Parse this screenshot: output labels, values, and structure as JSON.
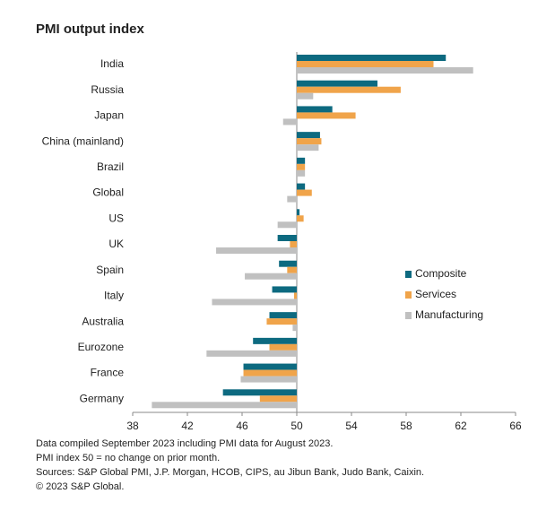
{
  "chart_data": {
    "type": "bar",
    "orientation": "horizontal",
    "title": "PMI output index",
    "categories": [
      "India",
      "Russia",
      "Japan",
      "China (mainland)",
      "Brazil",
      "Global",
      "US",
      "UK",
      "Spain",
      "Italy",
      "Australia",
      "Eurozone",
      "France",
      "Germany"
    ],
    "series": [
      {
        "name": "Composite",
        "color": "#0d6a80",
        "values": [
          60.9,
          55.9,
          52.6,
          51.7,
          50.6,
          50.6,
          50.2,
          48.6,
          48.7,
          48.2,
          48.0,
          46.8,
          46.1,
          44.6
        ]
      },
      {
        "name": "Services",
        "color": "#f0a44a",
        "values": [
          60.0,
          57.6,
          54.3,
          51.8,
          50.6,
          51.1,
          50.5,
          49.5,
          49.3,
          49.8,
          47.8,
          48.0,
          46.1,
          47.3
        ]
      },
      {
        "name": "Manufacturing",
        "color": "#c0c0c0",
        "values": [
          62.9,
          51.2,
          49.0,
          51.6,
          50.6,
          49.3,
          48.6,
          44.1,
          46.2,
          43.8,
          49.7,
          43.4,
          45.9,
          39.4
        ]
      }
    ],
    "baseline": 50,
    "xlim": [
      38,
      66
    ],
    "xticks": [
      38,
      42,
      46,
      50,
      54,
      58,
      62,
      66
    ],
    "grid": false,
    "legend": "right",
    "notes": [
      "Data compiled September 2023 including PMI data for August 2023.",
      "PMI index 50 = no change on prior month.",
      "Sources: S&P Global PMI, J.P. Morgan, HCOB, CIPS, au Jibun Bank, Judo Bank, Caixin.",
      "© 2023 S&P Global."
    ]
  }
}
